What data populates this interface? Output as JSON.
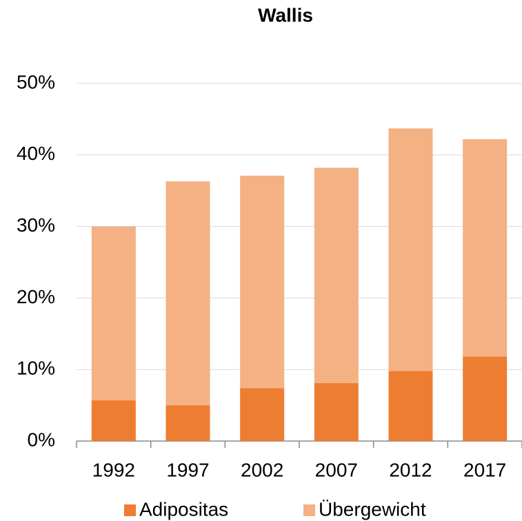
{
  "chart_data": {
    "type": "stacked_bar",
    "title": "Wallis",
    "categories": [
      "1992",
      "1997",
      "2002",
      "2007",
      "2012",
      "2017"
    ],
    "series": [
      {
        "name": "Adipositas",
        "color": "#ed7d31",
        "values": [
          5.7,
          5.0,
          7.4,
          8.1,
          9.8,
          11.8
        ]
      },
      {
        "name": "Übergewicht",
        "color": "#f4b183",
        "values": [
          24.3,
          31.3,
          29.7,
          30.1,
          33.9,
          30.4
        ]
      }
    ],
    "ylim": [
      0,
      50
    ],
    "yticks": [
      {
        "value": 0,
        "label": "0%"
      },
      {
        "value": 10,
        "label": "10%"
      },
      {
        "value": 20,
        "label": "20%"
      },
      {
        "value": 30,
        "label": "30%"
      },
      {
        "value": 40,
        "label": "40%"
      },
      {
        "value": 50,
        "label": "50%"
      }
    ],
    "grid": true,
    "legend": "bottom"
  }
}
